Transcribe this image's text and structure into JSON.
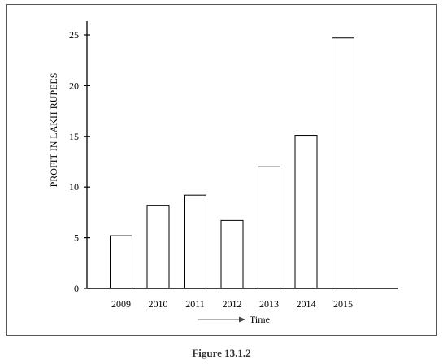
{
  "chart_data": {
    "type": "bar",
    "categories": [
      "2009",
      "2010",
      "2011",
      "2012",
      "2013",
      "2014",
      "2015"
    ],
    "values": [
      5.2,
      8.2,
      9.2,
      6.7,
      12,
      15.1,
      24.7
    ],
    "title": "",
    "xlabel": "Time",
    "ylabel": "PROFIT IN LAKH RUPEES",
    "ylim": [
      0,
      25
    ],
    "yticks": [
      0,
      5,
      10,
      15,
      20,
      25
    ],
    "grid": false,
    "bar_fill": "#ffffff",
    "bar_stroke": "#000000",
    "xlabel_arrow_color": "#666666"
  },
  "caption": "Figure 13.1.2"
}
